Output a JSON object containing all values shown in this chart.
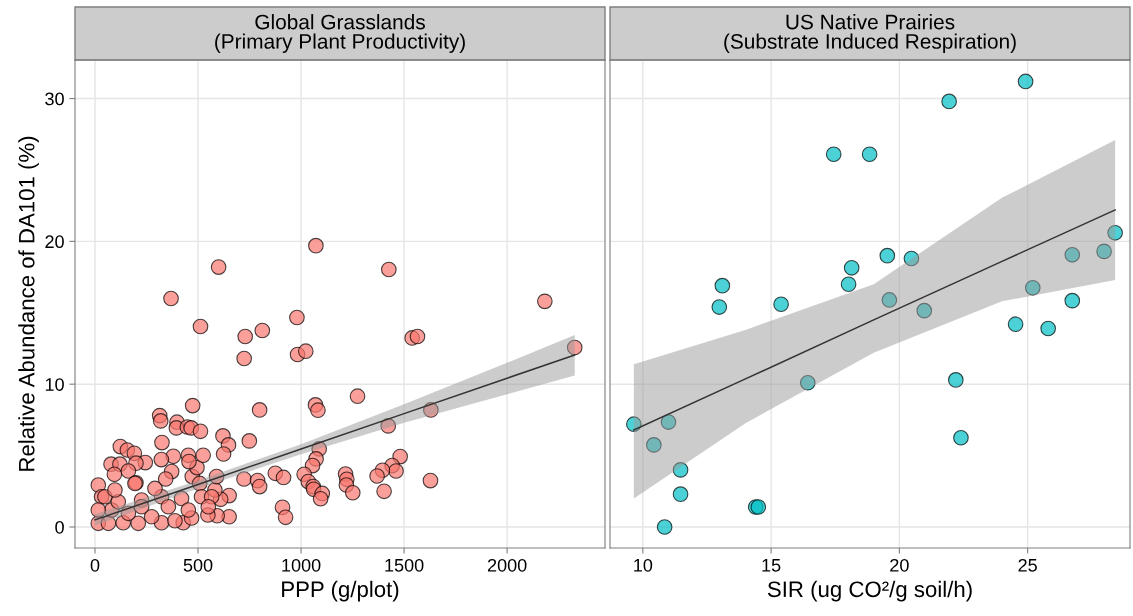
{
  "chart_data": [
    {
      "type": "scatter",
      "title": "Global Grasslands\n(Primary Plant Productivity)",
      "xlabel": "PPP (g/plot)",
      "ylabel": "Relative Abundance of DA101 (%)",
      "xlim": [
        -97,
        2475
      ],
      "ylim": [
        -1.47,
        32.7
      ],
      "xticks": [
        0,
        500,
        1000,
        1500,
        2000
      ],
      "yticks": [
        0,
        10,
        20,
        30
      ],
      "grid": true,
      "series": [
        {
          "color": "#f8766d",
          "marker": "circle",
          "x": [
            1072,
            600,
            1426,
            369,
            2183,
            980,
            512,
            729,
            812,
            1539,
            1565,
            724,
            983,
            1023,
            2328,
            1274,
            1070,
            1082,
            1630,
            1423,
            474,
            799,
            314,
            319,
            398,
            395,
            448,
            467,
            512,
            621,
            648,
            749,
            325,
            123,
            157,
            191,
            1088,
            1073,
            1056,
            1481,
            1442,
            1461,
            1395,
            1369,
            1216,
            1222,
            1220,
            1251,
            1403,
            1628,
            1015,
            1035,
            1059,
            1061,
            1103,
            1095,
            910,
            925,
            875,
            915,
            723,
            789,
            799,
            651,
            593,
            548,
            651,
            610,
            582,
            590,
            472,
            495,
            508,
            525,
            453,
            456,
            624,
            372,
            380,
            322,
            343,
            244,
            199,
            78,
            121,
            94,
            162,
            199,
            16,
            32,
            16,
            65,
            137,
            210,
            323,
            428,
            469,
            388,
            275,
            162,
            81,
            16,
            48,
            113,
            226,
            323,
            420,
            517,
            566,
            291,
            194,
            97,
            356,
            226,
            453,
            550
          ],
          "values": [
            19.7,
            18.2,
            18.03,
            16.0,
            15.8,
            14.67,
            14.04,
            13.34,
            13.76,
            13.24,
            13.34,
            11.8,
            12.08,
            12.31,
            12.57,
            9.16,
            8.55,
            8.18,
            8.2,
            7.08,
            8.5,
            8.2,
            7.8,
            7.43,
            7.34,
            6.94,
            7.0,
            6.94,
            6.7,
            6.38,
            5.75,
            6.03,
            5.91,
            5.63,
            5.39,
            5.16,
            5.47,
            4.77,
            4.3,
            4.93,
            4.3,
            3.92,
            3.97,
            3.57,
            3.71,
            3.34,
            2.94,
            2.4,
            2.5,
            3.25,
            3.69,
            3.18,
            2.83,
            2.64,
            2.35,
            1.98,
            1.38,
            0.68,
            3.76,
            3.47,
            3.36,
            3.25,
            2.83,
            0.72,
            0.79,
            0.84,
            2.2,
            1.94,
            2.59,
            3.53,
            3.53,
            4.16,
            3.05,
            5.02,
            5.02,
            4.58,
            5.11,
            3.88,
            4.95,
            4.72,
            3.36,
            4.51,
            4.47,
            4.4,
            4.4,
            3.69,
            3.92,
            3.1,
            2.94,
            2.12,
            0.26,
            0.26,
            0.3,
            0.26,
            0.3,
            0.3,
            0.63,
            0.44,
            0.72,
            0.96,
            1.19,
            1.19,
            2.12,
            1.77,
            1.89,
            2.12,
            2.0,
            2.12,
            2.12,
            2.7,
            3.05,
            2.59,
            1.42,
            1.42,
            1.19,
            1.42
          ]
        },
        {
          "type": "line",
          "color": "#333333",
          "x": [
            0,
            500,
            1000,
            1500,
            2000,
            2328
          ],
          "values": [
            0.5,
            2.98,
            5.46,
            7.94,
            10.42,
            12.05
          ],
          "lower": [
            0.1,
            2.7,
            5.1,
            7.3,
            9.3,
            10.6
          ],
          "upper": [
            0.9,
            3.25,
            5.8,
            8.6,
            11.5,
            13.45
          ]
        }
      ]
    },
    {
      "type": "scatter",
      "title": "US Native Prairies\n(Substrate Induced Respiration)",
      "xlabel": "SIR (ug CO²/g soil/h)",
      "xlim": [
        8.72,
        28.99
      ],
      "ylim": [
        -1.47,
        32.7
      ],
      "xticks": [
        10,
        15,
        20,
        25
      ],
      "yticks": [
        0,
        10,
        20,
        30
      ],
      "tick_labels": "x",
      "grid": true,
      "series": [
        {
          "color": "#00bfc4",
          "marker": "circle",
          "x": [
            9.65,
            10.43,
            11.0,
            10.85,
            11.47,
            11.47,
            14.4,
            14.5,
            12.98,
            13.1,
            15.39,
            16.43,
            17.44,
            18.84,
            18.02,
            18.14,
            19.53,
            19.61,
            20.47,
            20.97,
            21.94,
            22.2,
            22.4,
            24.53,
            24.92,
            25.2,
            25.8,
            26.74,
            26.74,
            27.98,
            28.41
          ],
          "values": [
            7.2,
            5.75,
            7.35,
            0,
            4.0,
            2.3,
            1.4,
            1.4,
            15.4,
            16.9,
            15.6,
            10.1,
            26.1,
            26.1,
            17.0,
            18.15,
            19.0,
            15.9,
            18.8,
            15.15,
            29.8,
            10.3,
            6.25,
            14.2,
            31.2,
            16.75,
            13.9,
            15.85,
            19.06,
            19.3,
            20.6
          ]
        },
        {
          "type": "line",
          "color": "#333333",
          "x": [
            9.65,
            14,
            19,
            24,
            28.41
          ],
          "values": [
            6.8,
            10.37,
            14.5,
            18.6,
            22.2
          ],
          "lower": [
            2.0,
            7.27,
            12.2,
            15.8,
            17.3
          ],
          "upper": [
            11.4,
            13.8,
            17.0,
            23.05,
            27.1
          ]
        }
      ]
    }
  ]
}
